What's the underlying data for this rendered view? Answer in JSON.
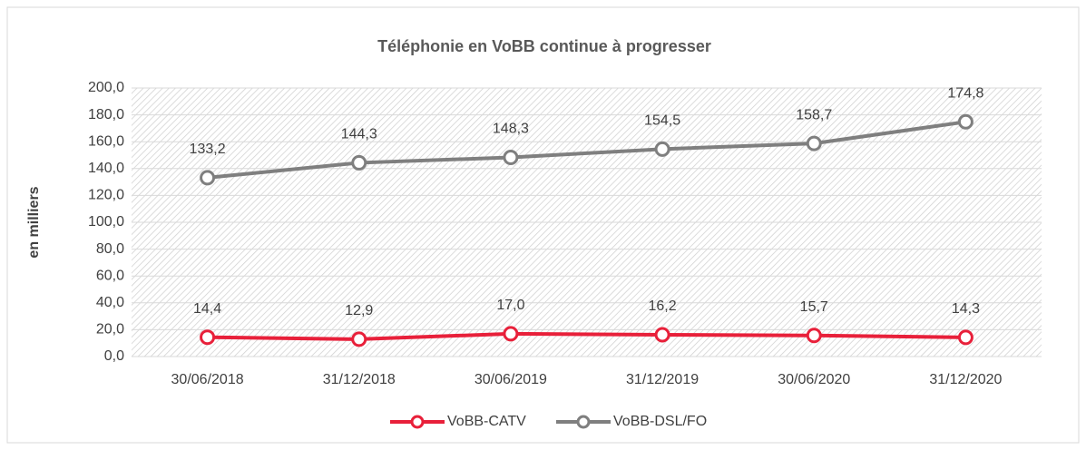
{
  "chart_data": {
    "type": "line",
    "title": "Téléphonie en VoBB continue à progresser",
    "y_label": "en milliers",
    "categories": [
      "30/06/2018",
      "31/12/2018",
      "30/06/2019",
      "31/12/2019",
      "30/06/2020",
      "31/12/2020"
    ],
    "series": [
      {
        "name": "VoBB-CATV",
        "color": "#e8203a",
        "values": [
          14.4,
          12.9,
          17.0,
          16.2,
          15.7,
          14.3
        ],
        "value_labels": [
          "14,4",
          "12,9",
          "17,0",
          "16,2",
          "15,7",
          "14,3"
        ]
      },
      {
        "name": "VoBB-DSL/FO",
        "color": "#7f7f7f",
        "values": [
          133.2,
          144.3,
          148.3,
          154.5,
          158.7,
          174.8
        ],
        "value_labels": [
          "133,2",
          "144,3",
          "148,3",
          "154,5",
          "158,7",
          "174,8"
        ]
      }
    ],
    "ylim": [
      0,
      200
    ],
    "yticks": [
      {
        "value": 0,
        "label": "0,0"
      },
      {
        "value": 20,
        "label": "20,0"
      },
      {
        "value": 40,
        "label": "40,0"
      },
      {
        "value": 60,
        "label": "60,0"
      },
      {
        "value": 80,
        "label": "80,0"
      },
      {
        "value": 100,
        "label": "100,0"
      },
      {
        "value": 120,
        "label": "120,0"
      },
      {
        "value": 140,
        "label": "140,0"
      },
      {
        "value": 160,
        "label": "160,0"
      },
      {
        "value": 180,
        "label": "180,0"
      },
      {
        "value": 200,
        "label": "200,0"
      }
    ],
    "grid": true,
    "legend": "bottom"
  }
}
